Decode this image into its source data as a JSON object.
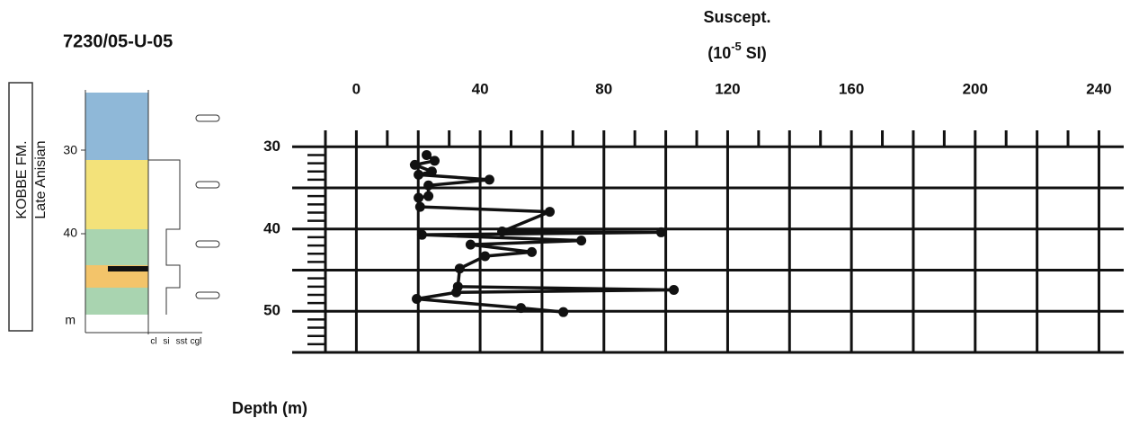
{
  "log": {
    "title": "7230/05-U-05",
    "formation": "KOBBE FM.",
    "age": "Late Anisian",
    "depth_labels": [
      30,
      40
    ],
    "unit": "m",
    "grain_sizes": [
      "cl",
      "si",
      "sst",
      "cgl"
    ]
  },
  "chart_data": {
    "type": "line",
    "x_label": {
      "line1": "Suscept.",
      "prefix": "(10",
      "exponent": "-5",
      "suffix": " SI)"
    },
    "y_label": "Depth (m)",
    "color": "#111111",
    "x": [
      22.7,
      25.3,
      18.9,
      24.4,
      20.1,
      43.0,
      23.3,
      23.3,
      20.1,
      20.6,
      62.5,
      47.1,
      98.5,
      21.2,
      72.7,
      36.9,
      56.7,
      41.6,
      33.4,
      32.8,
      102.6,
      32.3,
      19.5,
      53.2,
      66.9
    ],
    "y": [
      31.0,
      31.7,
      32.2,
      33.0,
      33.4,
      34.0,
      34.7,
      36.0,
      36.2,
      37.3,
      37.9,
      40.3,
      40.4,
      40.7,
      41.4,
      41.9,
      42.8,
      43.3,
      44.8,
      47.0,
      47.4,
      47.7,
      48.5,
      49.6,
      50.1
    ],
    "xlim": [
      -10,
      248
    ],
    "ylim": [
      28,
      55
    ],
    "y_inverted": true,
    "xticks": [
      0,
      40,
      80,
      120,
      160,
      200,
      240
    ],
    "xgrid_extra": [
      20,
      60,
      100,
      140,
      180,
      220
    ],
    "xminor": [
      10,
      30,
      50,
      70,
      90,
      110,
      130,
      150,
      170,
      190,
      210,
      230
    ],
    "yticks": [
      30,
      40,
      50
    ],
    "ygrid_extra": [
      35,
      45,
      55
    ],
    "yminor": [
      31,
      32,
      33,
      34,
      36,
      37,
      38,
      39,
      41,
      42,
      43,
      44,
      46,
      47,
      48,
      49,
      51,
      52,
      53,
      54
    ]
  }
}
